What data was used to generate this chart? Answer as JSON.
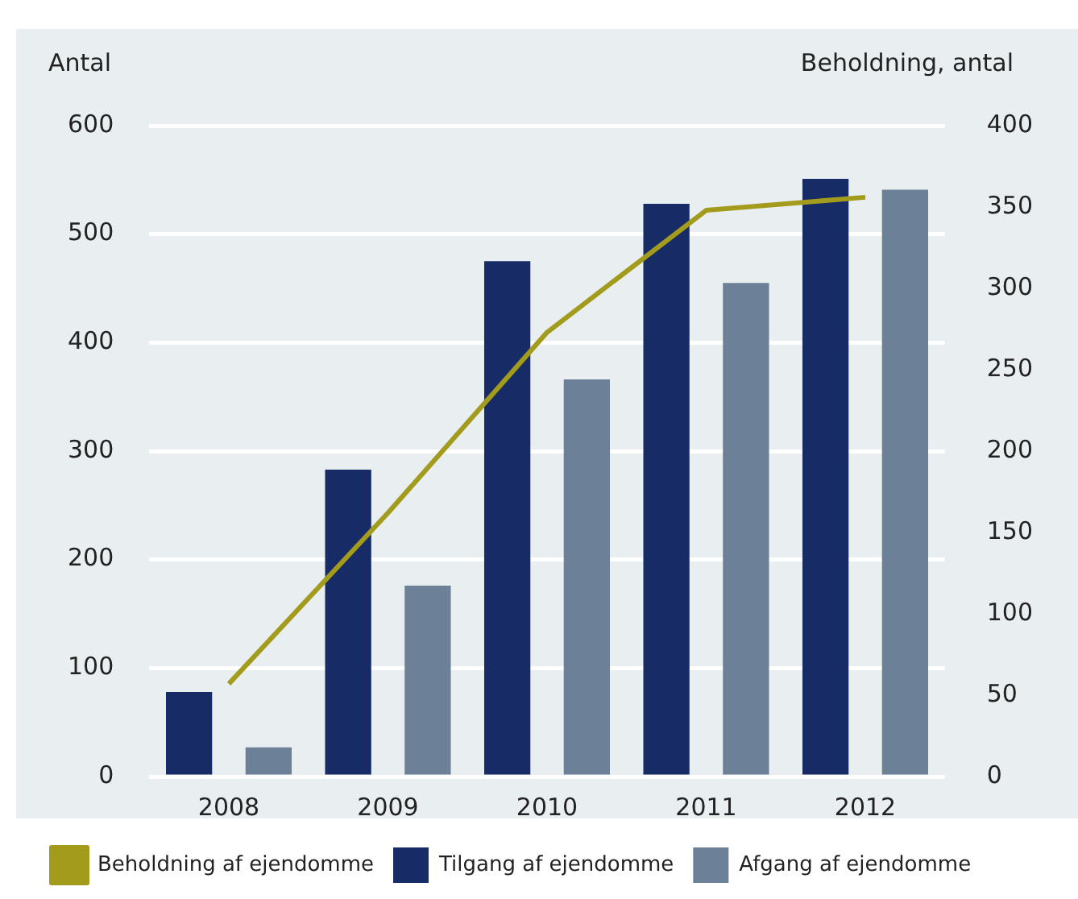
{
  "chart_data": {
    "type": "bar",
    "categories": [
      "2008",
      "2009",
      "2010",
      "2011",
      "2012"
    ],
    "series": [
      {
        "name": "Tilgang af ejendomme",
        "color": "#172b66",
        "values": [
          78,
          283,
          475,
          528,
          551
        ]
      },
      {
        "name": "Afgang af ejendomme",
        "color": "#6c8197",
        "values": [
          27,
          176,
          366,
          455,
          541
        ]
      },
      {
        "name": "Beholdning af ejendomme",
        "type": "line",
        "axis": "y2",
        "color": "#a39b1c",
        "values": [
          57,
          162,
          273,
          348,
          356
        ]
      }
    ],
    "ylabel": "Antal",
    "y2label": "Beholdning, antal",
    "ylim": [
      0,
      600
    ],
    "yticks": [
      0,
      100,
      200,
      300,
      400,
      500,
      600
    ],
    "y2lim": [
      0,
      400
    ],
    "y2ticks": [
      0,
      50,
      100,
      150,
      200,
      250,
      300,
      350,
      400
    ],
    "grid": "y",
    "legend": "bottom",
    "marker": "none",
    "line_style": "solid"
  }
}
